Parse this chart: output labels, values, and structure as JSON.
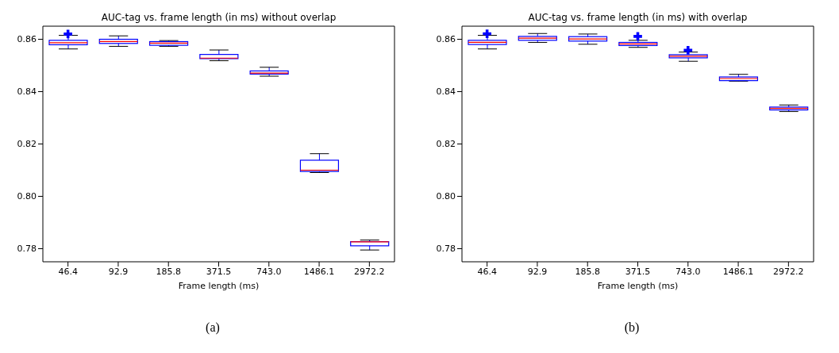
{
  "chart_data": [
    {
      "type": "box",
      "title": "AUC-tag vs. frame length (in ms) without overlap",
      "xlabel": "Frame length (ms)",
      "categories": [
        "46.4",
        "92.9",
        "185.8",
        "371.5",
        "743.0",
        "1486.1",
        "2972.2"
      ],
      "color": "#0000ff",
      "ylim": [
        0.775,
        0.865
      ],
      "yticks": [
        0.78,
        {
          "value": 0.8,
          "label": "0.80"
        },
        0.82,
        0.84,
        0.86
      ],
      "annotations": [
        "(a)"
      ],
      "boxes": [
        {
          "low": 0.8563,
          "q1": 0.8579,
          "median": 0.8587,
          "q3": 0.8596,
          "high": 0.8615,
          "outliers": [
            0.862
          ]
        },
        {
          "low": 0.8573,
          "q1": 0.8584,
          "median": 0.8591,
          "q3": 0.86,
          "high": 0.8613
        },
        {
          "low": 0.8573,
          "q1": 0.8577,
          "median": 0.8585,
          "q3": 0.8591,
          "high": 0.8595
        },
        {
          "low": 0.8518,
          "q1": 0.8526,
          "median": 0.8528,
          "q3": 0.8542,
          "high": 0.8559
        },
        {
          "low": 0.8459,
          "q1": 0.8467,
          "median": 0.8471,
          "q3": 0.8479,
          "high": 0.8493
        },
        {
          "low": 0.8091,
          "q1": 0.8095,
          "median": 0.81,
          "q3": 0.8138,
          "high": 0.8163
        },
        {
          "low": 0.7795,
          "q1": 0.7811,
          "median": 0.7826,
          "q3": 0.7827,
          "high": 0.7833
        }
      ]
    },
    {
      "type": "box",
      "title": "AUC-tag vs. frame length (in ms) with overlap",
      "xlabel": "Frame length (ms)",
      "categories": [
        "46.4",
        "92.9",
        "185.8",
        "371.5",
        "743.0",
        "1486.1",
        "2972.2"
      ],
      "color": "#0000ff",
      "ylim": [
        0.775,
        0.865
      ],
      "yticks": [
        0.78,
        {
          "value": 0.8,
          "label": "0.80"
        },
        0.82,
        0.84,
        0.86
      ],
      "annotations": [
        "(b)"
      ],
      "boxes": [
        {
          "low": 0.8563,
          "q1": 0.858,
          "median": 0.8588,
          "q3": 0.8596,
          "high": 0.8615,
          "outliers": [
            0.8621
          ]
        },
        {
          "low": 0.8588,
          "q1": 0.8596,
          "median": 0.8604,
          "q3": 0.8611,
          "high": 0.8622
        },
        {
          "low": 0.8581,
          "q1": 0.8593,
          "median": 0.8601,
          "q3": 0.861,
          "high": 0.862
        },
        {
          "low": 0.8569,
          "q1": 0.8576,
          "median": 0.8582,
          "q3": 0.8588,
          "high": 0.8596,
          "outliers": [
            0.8611
          ]
        },
        {
          "low": 0.8516,
          "q1": 0.8529,
          "median": 0.8535,
          "q3": 0.8541,
          "high": 0.8551,
          "outliers": [
            0.8558
          ]
        },
        {
          "low": 0.844,
          "q1": 0.8442,
          "median": 0.845,
          "q3": 0.8456,
          "high": 0.8466
        },
        {
          "low": 0.8324,
          "q1": 0.833,
          "median": 0.8336,
          "q3": 0.8341,
          "high": 0.8349
        }
      ]
    }
  ]
}
